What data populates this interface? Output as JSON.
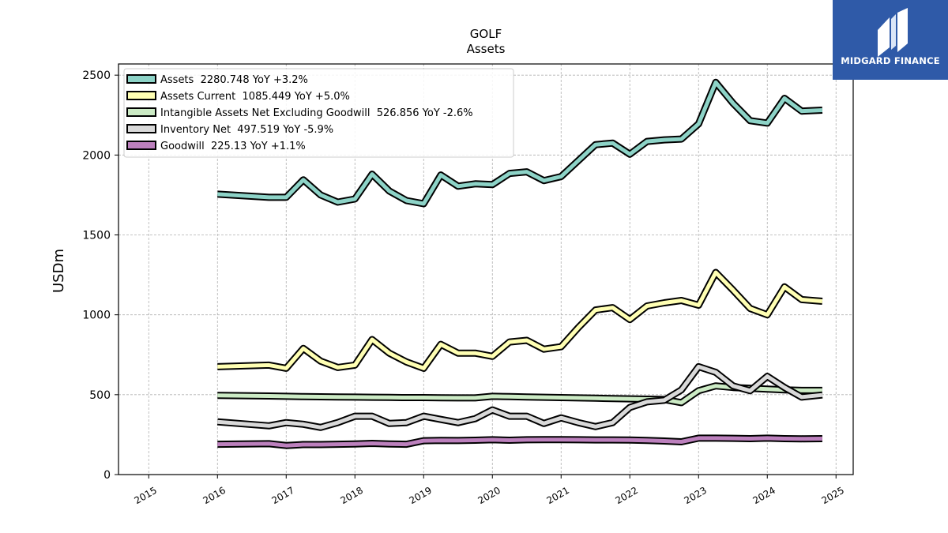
{
  "brand": {
    "name": "MIDGARD FINANCE",
    "color": "#2f5aa8"
  },
  "chart_data": {
    "type": "line",
    "title": "GOLF",
    "subtitle": "Assets",
    "xlabel": "",
    "ylabel": "USDm",
    "xlim": [
      2014.56,
      2025.25
    ],
    "ylim": [
      0,
      2570
    ],
    "x_ticks": [
      2015,
      2016,
      2017,
      2018,
      2019,
      2020,
      2021,
      2022,
      2023,
      2024,
      2025
    ],
    "y_ticks": [
      0,
      500,
      1000,
      1500,
      2000,
      2500
    ],
    "grid": true,
    "legend_position": "top-left",
    "x": [
      2016.0,
      2016.75,
      2017.0,
      2017.25,
      2017.5,
      2017.75,
      2018.0,
      2018.25,
      2018.5,
      2018.75,
      2019.0,
      2019.25,
      2019.5,
      2019.75,
      2020.0,
      2020.25,
      2020.5,
      2020.75,
      2021.0,
      2021.25,
      2021.5,
      2021.75,
      2022.0,
      2022.25,
      2022.5,
      2022.75,
      2023.0,
      2023.25,
      2023.5,
      2023.75,
      2024.0,
      2024.25,
      2024.5,
      2024.8
    ],
    "series": [
      {
        "name": "Assets",
        "legend": "Assets  2280.748 YoY +3.2%",
        "color": "#8dd3c7",
        "values": [
          1755,
          1735,
          1735,
          1845,
          1750,
          1705,
          1725,
          1880,
          1775,
          1715,
          1695,
          1875,
          1805,
          1820,
          1815,
          1885,
          1895,
          1840,
          1865,
          1965,
          2065,
          2075,
          2005,
          2085,
          2095,
          2100,
          2195,
          2455,
          2325,
          2215,
          2200,
          2355,
          2275,
          2281
        ]
      },
      {
        "name": "Assets Current",
        "legend": "Assets Current  1085.449 YoY +5.0%",
        "color": "#ffffb3",
        "values": [
          675,
          685,
          665,
          790,
          710,
          670,
          685,
          845,
          760,
          705,
          665,
          815,
          760,
          760,
          740,
          830,
          840,
          785,
          800,
          920,
          1030,
          1045,
          970,
          1055,
          1075,
          1090,
          1060,
          1265,
          1155,
          1040,
          1000,
          1175,
          1095,
          1085
        ]
      },
      {
        "name": "Intangible Assets Net Excluding Goodwill",
        "legend": "Intangible Assets Net Excluding Goodwill  526.856 YoY -2.6%",
        "color": "#ccebc5",
        "values": [
          495,
          492,
          490,
          488,
          487,
          486,
          485,
          484,
          483,
          482,
          482,
          481,
          480,
          480,
          490,
          488,
          486,
          484,
          482,
          480,
          478,
          476,
          474,
          472,
          470,
          450,
          525,
          555,
          545,
          540,
          535,
          530,
          527,
          527
        ]
      },
      {
        "name": "Inventory Net",
        "legend": "Inventory Net  497.519 YoY -5.9%",
        "color": "#d9d9d9",
        "values": [
          330,
          305,
          325,
          315,
          295,
          325,
          365,
          365,
          320,
          325,
          365,
          345,
          325,
          350,
          405,
          365,
          365,
          320,
          355,
          325,
          300,
          325,
          420,
          455,
          465,
          530,
          675,
          640,
          555,
          525,
          615,
          545,
          485,
          498
        ]
      },
      {
        "name": "Goodwill",
        "legend": "Goodwill  225.13 YoY +1.1%",
        "color": "#bc80bd",
        "values": [
          190,
          193,
          182,
          188,
          188,
          190,
          192,
          195,
          192,
          190,
          212,
          214,
          213,
          215,
          218,
          215,
          218,
          219,
          219,
          218,
          217,
          217,
          216,
          214,
          210,
          205,
          228,
          228,
          227,
          225,
          228,
          225,
          224,
          225
        ]
      }
    ]
  }
}
